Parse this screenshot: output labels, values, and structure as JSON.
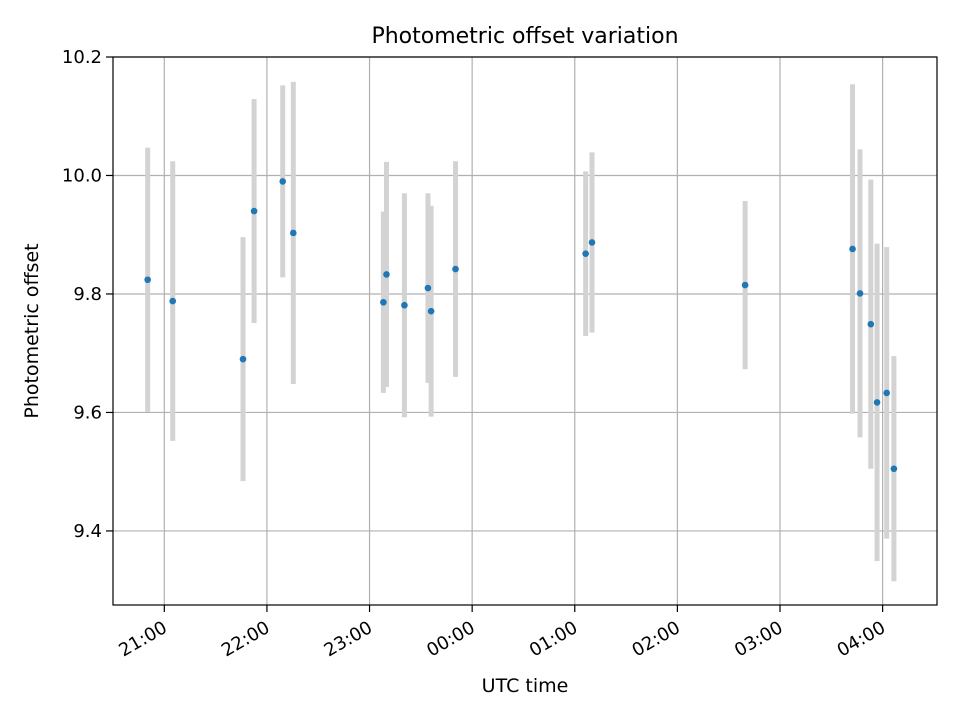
{
  "chart_data": {
    "type": "scatter",
    "title": "Photometric offset variation",
    "xlabel": "UTC time",
    "ylabel": "Photometric offset",
    "x_unit": "hours since 00:00 UTC",
    "xlim": [
      -3.5,
      4.53
    ],
    "ylim": [
      9.275,
      10.2
    ],
    "grid": true,
    "x_ticks": [
      {
        "value": -3,
        "label": "21:00"
      },
      {
        "value": -2,
        "label": "22:00"
      },
      {
        "value": -1,
        "label": "23:00"
      },
      {
        "value": 0,
        "label": "00:00"
      },
      {
        "value": 1,
        "label": "01:00"
      },
      {
        "value": 2,
        "label": "02:00"
      },
      {
        "value": 3,
        "label": "03:00"
      },
      {
        "value": 4,
        "label": "04:00"
      }
    ],
    "y_ticks": [
      {
        "value": 9.4,
        "label": "9.4"
      },
      {
        "value": 9.6,
        "label": "9.6"
      },
      {
        "value": 9.8,
        "label": "9.8"
      },
      {
        "value": 10.0,
        "label": "10.0"
      },
      {
        "value": 10.2,
        "label": "10.2"
      }
    ],
    "point_color": "#1f77b4",
    "errorbar_color": "#d3d3d3",
    "points": [
      {
        "time": "20:50",
        "x": -3.162,
        "y": 9.824,
        "yerr": 0.223
      },
      {
        "time": "21:05",
        "x": -2.918,
        "y": 9.788,
        "yerr": 0.236
      },
      {
        "time": "21:46",
        "x": -2.233,
        "y": 9.69,
        "yerr": 0.206
      },
      {
        "time": "21:53",
        "x": -2.125,
        "y": 9.94,
        "yerr": 0.189
      },
      {
        "time": "22:09",
        "x": -1.846,
        "y": 9.99,
        "yerr": 0.162
      },
      {
        "time": "22:16",
        "x": -1.743,
        "y": 9.903,
        "yerr": 0.255
      },
      {
        "time": "23:08",
        "x": -0.865,
        "y": 9.786,
        "yerr": 0.153
      },
      {
        "time": "23:10",
        "x": -0.835,
        "y": 9.833,
        "yerr": 0.19
      },
      {
        "time": "23:21",
        "x": -0.66,
        "y": 9.781,
        "yerr": 0.189
      },
      {
        "time": "23:34",
        "x": -0.431,
        "y": 9.81,
        "yerr": 0.16
      },
      {
        "time": "23:36",
        "x": -0.4,
        "y": 9.771,
        "yerr": 0.178
      },
      {
        "time": "23:50",
        "x": -0.162,
        "y": 9.842,
        "yerr": 0.182
      },
      {
        "time": "01:06",
        "x": 1.106,
        "y": 9.868,
        "yerr": 0.139
      },
      {
        "time": "01:10",
        "x": 1.168,
        "y": 9.887,
        "yerr": 0.152
      },
      {
        "time": "02:40",
        "x": 2.66,
        "y": 9.815,
        "yerr": 0.142
      },
      {
        "time": "03:42",
        "x": 3.707,
        "y": 9.876,
        "yerr": 0.278
      },
      {
        "time": "03:47",
        "x": 3.78,
        "y": 9.801,
        "yerr": 0.243
      },
      {
        "time": "03:53",
        "x": 3.885,
        "y": 9.749,
        "yerr": 0.244
      },
      {
        "time": "03:57",
        "x": 3.946,
        "y": 9.617,
        "yerr": 0.268
      },
      {
        "time": "04:02",
        "x": 4.04,
        "y": 9.633,
        "yerr": 0.246
      },
      {
        "time": "04:06",
        "x": 4.11,
        "y": 9.505,
        "yerr": 0.19
      }
    ]
  }
}
